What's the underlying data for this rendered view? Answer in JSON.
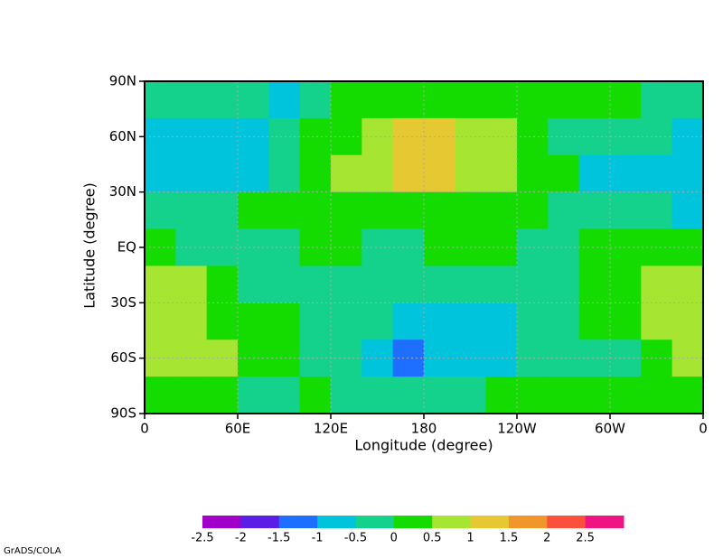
{
  "chart_data": {
    "type": "contour",
    "xlabel": "Longitude  (degree)",
    "ylabel": "Latitude  (degree)",
    "xlim": [
      0,
      360
    ],
    "ylim": [
      -90,
      90
    ],
    "xticks": [
      0,
      {
        "value": 60,
        "label": "60E"
      },
      {
        "value": 120,
        "label": "120E"
      },
      180,
      {
        "value": 240,
        "label": "120W"
      },
      {
        "value": 300,
        "label": "60W"
      },
      {
        "value": 360,
        "label": "0"
      }
    ],
    "yticks": [
      {
        "value": -90,
        "label": "90S"
      },
      {
        "value": -60,
        "label": "60S"
      },
      {
        "value": -30,
        "label": "30S"
      },
      {
        "value": 0,
        "label": "EQ"
      },
      {
        "value": 30,
        "label": "30N"
      },
      {
        "value": 60,
        "label": "60N"
      },
      {
        "value": 90,
        "label": "90N"
      }
    ],
    "grid": true,
    "field": {
      "lon": [
        10,
        30,
        50,
        70,
        90,
        110,
        130,
        150,
        170,
        190,
        210,
        230,
        250,
        270,
        290,
        310,
        330,
        350
      ],
      "lat": [
        80,
        60,
        40,
        20,
        0,
        -20,
        -40,
        -60,
        -80
      ],
      "values": [
        [
          -0.2,
          -0.2,
          -0.2,
          -0.2,
          -0.6,
          -0.2,
          0.3,
          0.3,
          0.3,
          0.3,
          0.3,
          0.3,
          0.3,
          0.3,
          0.3,
          0.3,
          -0.2,
          -0.2
        ],
        [
          -0.7,
          -0.7,
          -0.7,
          -0.6,
          -0.3,
          0.2,
          0.3,
          0.7,
          1.2,
          1.2,
          0.7,
          0.7,
          0.2,
          -0.2,
          -0.2,
          -0.2,
          -0.2,
          -0.6
        ],
        [
          -0.7,
          -0.7,
          -0.7,
          -0.7,
          -0.2,
          0.2,
          0.7,
          0.7,
          1.1,
          1.1,
          0.7,
          0.7,
          0.3,
          0.2,
          -0.6,
          -0.7,
          -0.7,
          -0.7
        ],
        [
          -0.2,
          -0.2,
          -0.2,
          0.2,
          0.2,
          0.3,
          0.3,
          0.2,
          0.3,
          0.3,
          0.3,
          0.3,
          0.2,
          -0.2,
          -0.2,
          -0.2,
          -0.3,
          -0.6
        ],
        [
          0.2,
          -0.2,
          -0.2,
          -0.2,
          -0.2,
          0.2,
          0.2,
          -0.2,
          -0.2,
          0.2,
          0.2,
          0.2,
          -0.2,
          -0.2,
          0.2,
          0.2,
          0.2,
          0.2
        ],
        [
          0.7,
          0.7,
          0.2,
          -0.2,
          -0.2,
          -0.3,
          -0.4,
          -0.2,
          -0.2,
          -0.2,
          -0.2,
          -0.2,
          -0.2,
          -0.2,
          0.2,
          0.3,
          0.7,
          0.7
        ],
        [
          0.7,
          0.7,
          0.3,
          0.2,
          0.2,
          -0.2,
          -0.2,
          -0.3,
          -0.7,
          -0.7,
          -0.7,
          -0.6,
          -0.2,
          -0.2,
          0.2,
          0.3,
          0.7,
          0.7
        ],
        [
          0.7,
          0.7,
          0.7,
          0.3,
          0.2,
          -0.2,
          -0.3,
          -0.7,
          -1.1,
          -0.7,
          -0.7,
          -0.6,
          -0.2,
          -0.2,
          -0.2,
          -0.2,
          0.3,
          0.6
        ],
        [
          0.2,
          0.2,
          0.2,
          -0.2,
          -0.2,
          0.2,
          -0.2,
          -0.2,
          -0.4,
          -0.2,
          -0.2,
          0.2,
          0.2,
          0.2,
          0.2,
          0.2,
          0.2,
          0.2
        ]
      ]
    },
    "colorbar": {
      "levels": [
        -2.5,
        -2,
        -1.5,
        -1,
        -0.5,
        0,
        0.5,
        1,
        1.5,
        2,
        2.5
      ],
      "colors": [
        "#a000c8",
        "#5a1ee6",
        "#1e6eff",
        "#00c3dc",
        "#14d28c",
        "#14dc00",
        "#a6e632",
        "#e6c832",
        "#f0962a",
        "#fa503c",
        "#f01482"
      ]
    }
  },
  "footer": "GrADS/COLA"
}
